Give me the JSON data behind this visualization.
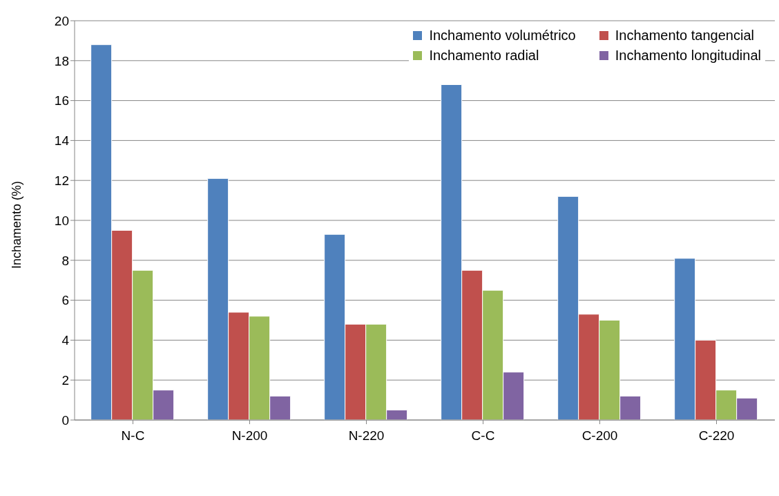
{
  "chart_data": {
    "type": "bar",
    "ylabel": "Inchamento (%)",
    "categories": [
      "N-C",
      "N-200",
      "N-220",
      "C-C",
      "C-200",
      "C-220"
    ],
    "series": [
      {
        "name": "Inchamento volumétrico",
        "color": "#4f81bd",
        "values": [
          18.8,
          12.1,
          9.3,
          16.8,
          11.2,
          8.1
        ]
      },
      {
        "name": "Inchamento tangencial",
        "color": "#c0504d",
        "values": [
          9.5,
          5.4,
          4.8,
          7.5,
          5.3,
          4.0
        ]
      },
      {
        "name": "Inchamento radial",
        "color": "#9bbb59",
        "values": [
          7.5,
          5.2,
          4.8,
          6.5,
          5.0,
          1.5
        ]
      },
      {
        "name": "Inchamento longitudinal",
        "color": "#8064a2",
        "values": [
          1.5,
          1.2,
          0.5,
          2.4,
          1.2,
          1.1
        ]
      }
    ],
    "ylim": [
      0,
      20
    ],
    "yticks": [
      0,
      2,
      4,
      6,
      8,
      10,
      12,
      14,
      16,
      18,
      20
    ],
    "grid": "y",
    "legend": "top right"
  }
}
